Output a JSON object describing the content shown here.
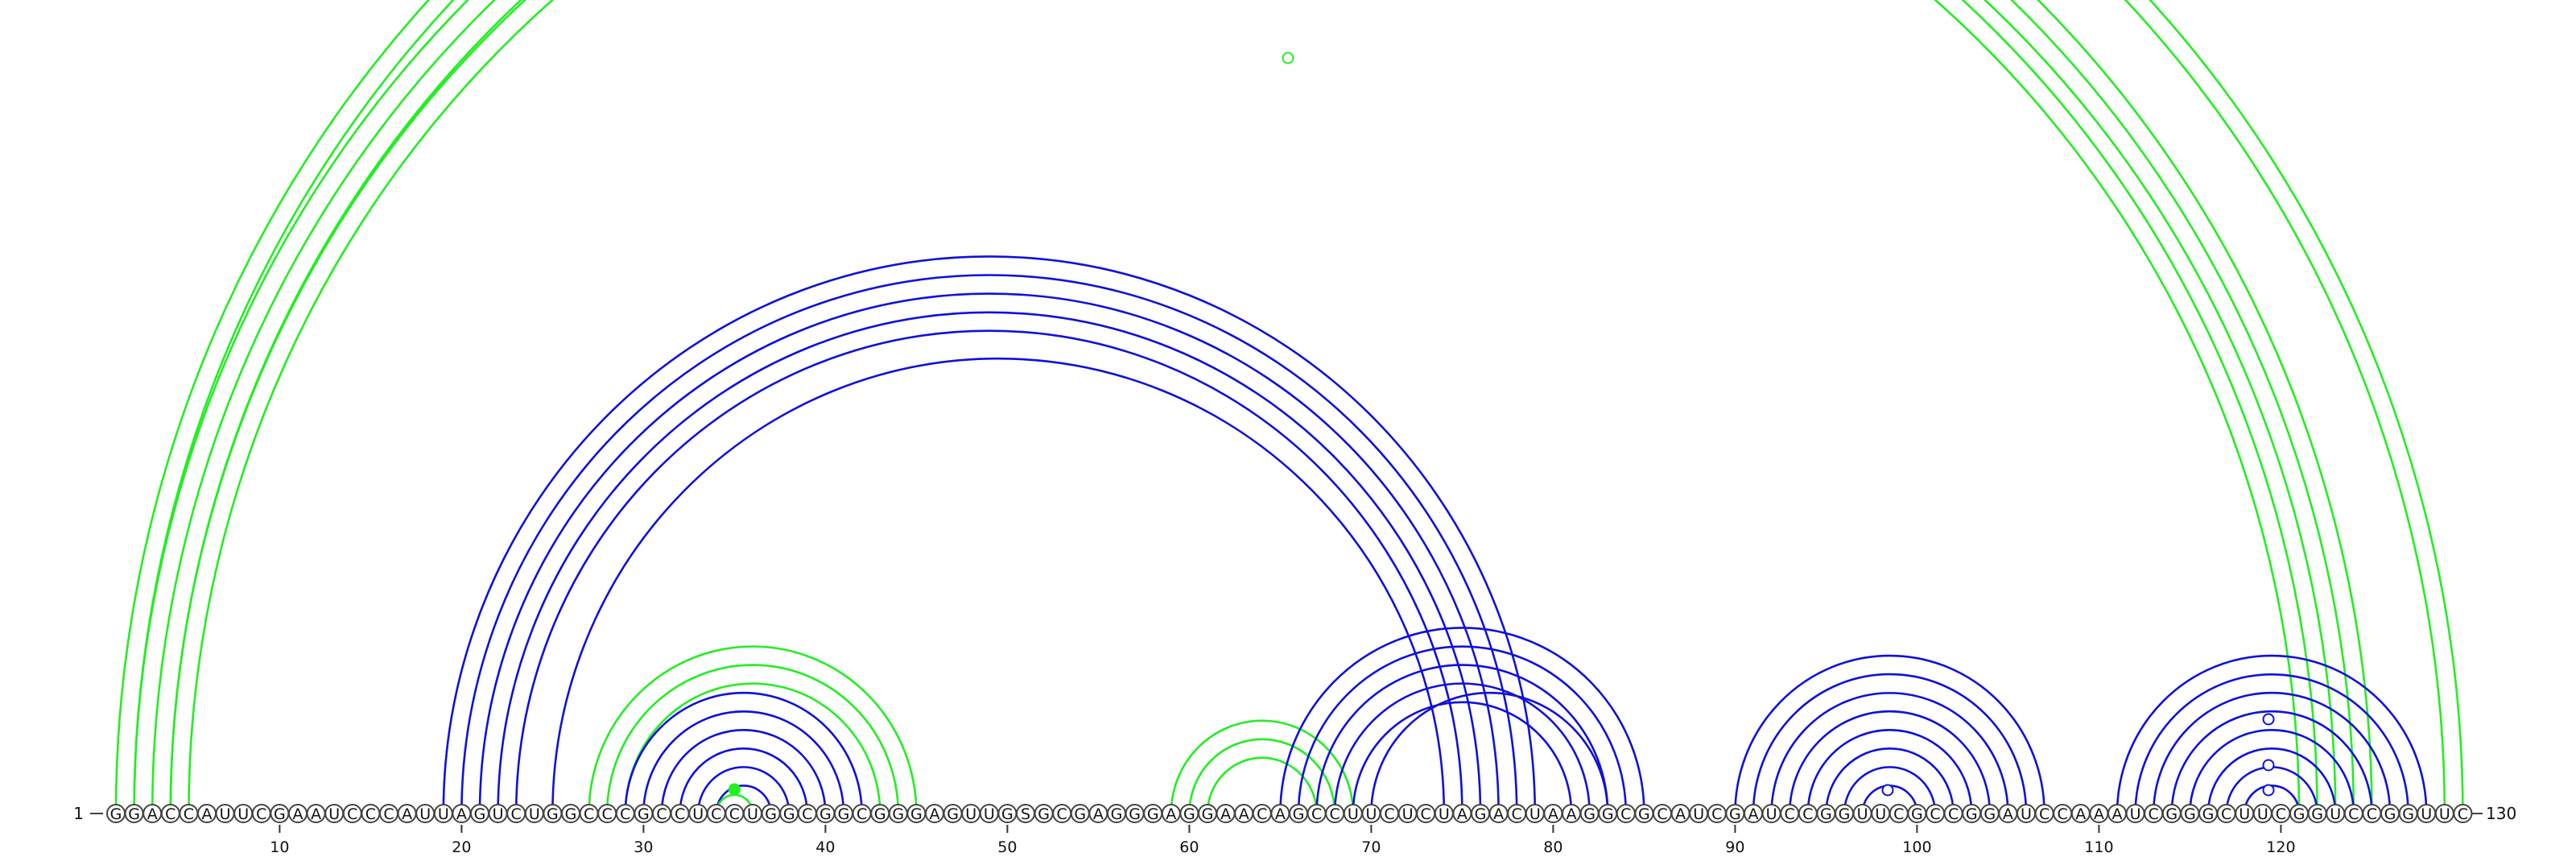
{
  "sequence": "GGACCAUUCGAAUCCCAUUAGUCUGGCCCGCCUCCUGGCGGCGGGAGUUGSGCGAGGGAGGAACAGCCUUCUCUAGACUAAGGCGCAUCGAUCCGGUUCGCCGGAUCCAAAUCGGGCUUCGGUCCGGUUC",
  "start_label": "1",
  "end_label": "130",
  "tick_labels": [
    "10",
    "20",
    "30",
    "40",
    "50",
    "60",
    "70",
    "80",
    "90",
    "100",
    "110",
    "120"
  ],
  "colors": {
    "green": "#22ee22",
    "blue": "#1010dd"
  },
  "helices": [
    {
      "color": "green",
      "i": 1,
      "j": 130,
      "n": 2
    },
    {
      "color": "green",
      "i": 2,
      "j": 125,
      "n": 3
    },
    {
      "color": "green",
      "i": 4,
      "j": 122,
      "n": 2
    },
    {
      "color": "blue",
      "i": 19,
      "j": 79,
      "n": 1
    },
    {
      "color": "blue",
      "i": 20,
      "j": 78,
      "n": 2
    },
    {
      "color": "blue",
      "i": 22,
      "j": 76,
      "n": 1
    },
    {
      "color": "blue",
      "i": 23,
      "j": 75,
      "n": 1
    },
    {
      "color": "blue",
      "i": 25,
      "j": 74,
      "n": 1
    },
    {
      "color": "green",
      "i": 27,
      "j": 45,
      "n": 3
    },
    {
      "color": "blue",
      "i": 29,
      "j": 42,
      "n": 6
    },
    {
      "color": "green",
      "i": 34,
      "j": 36,
      "n": 1
    },
    {
      "color": "green",
      "i": 59,
      "j": 69,
      "n": 3
    },
    {
      "color": "blue",
      "i": 65,
      "j": 85,
      "n": 5
    },
    {
      "color": "blue",
      "i": 70,
      "j": 83,
      "n": 1
    },
    {
      "color": "blue",
      "i": 90,
      "j": 107,
      "n": 8
    },
    {
      "color": "blue",
      "i": 111,
      "j": 128,
      "n": 8
    }
  ],
  "markers": [
    {
      "i": 66,
      "j": 66,
      "color": "green",
      "filled": false
    },
    {
      "i": 35,
      "j": 35,
      "color": "green",
      "filled": true
    },
    {
      "i": 119,
      "j": 120,
      "color": "blue",
      "filled": false
    },
    {
      "i": 119,
      "j": 120,
      "color": "blue",
      "filled": false,
      "level": 2
    },
    {
      "i": 119,
      "j": 120,
      "color": "blue",
      "filled": false,
      "level": 3
    },
    {
      "i": 98,
      "j": 99,
      "color": "blue",
      "filled": false
    }
  ]
}
